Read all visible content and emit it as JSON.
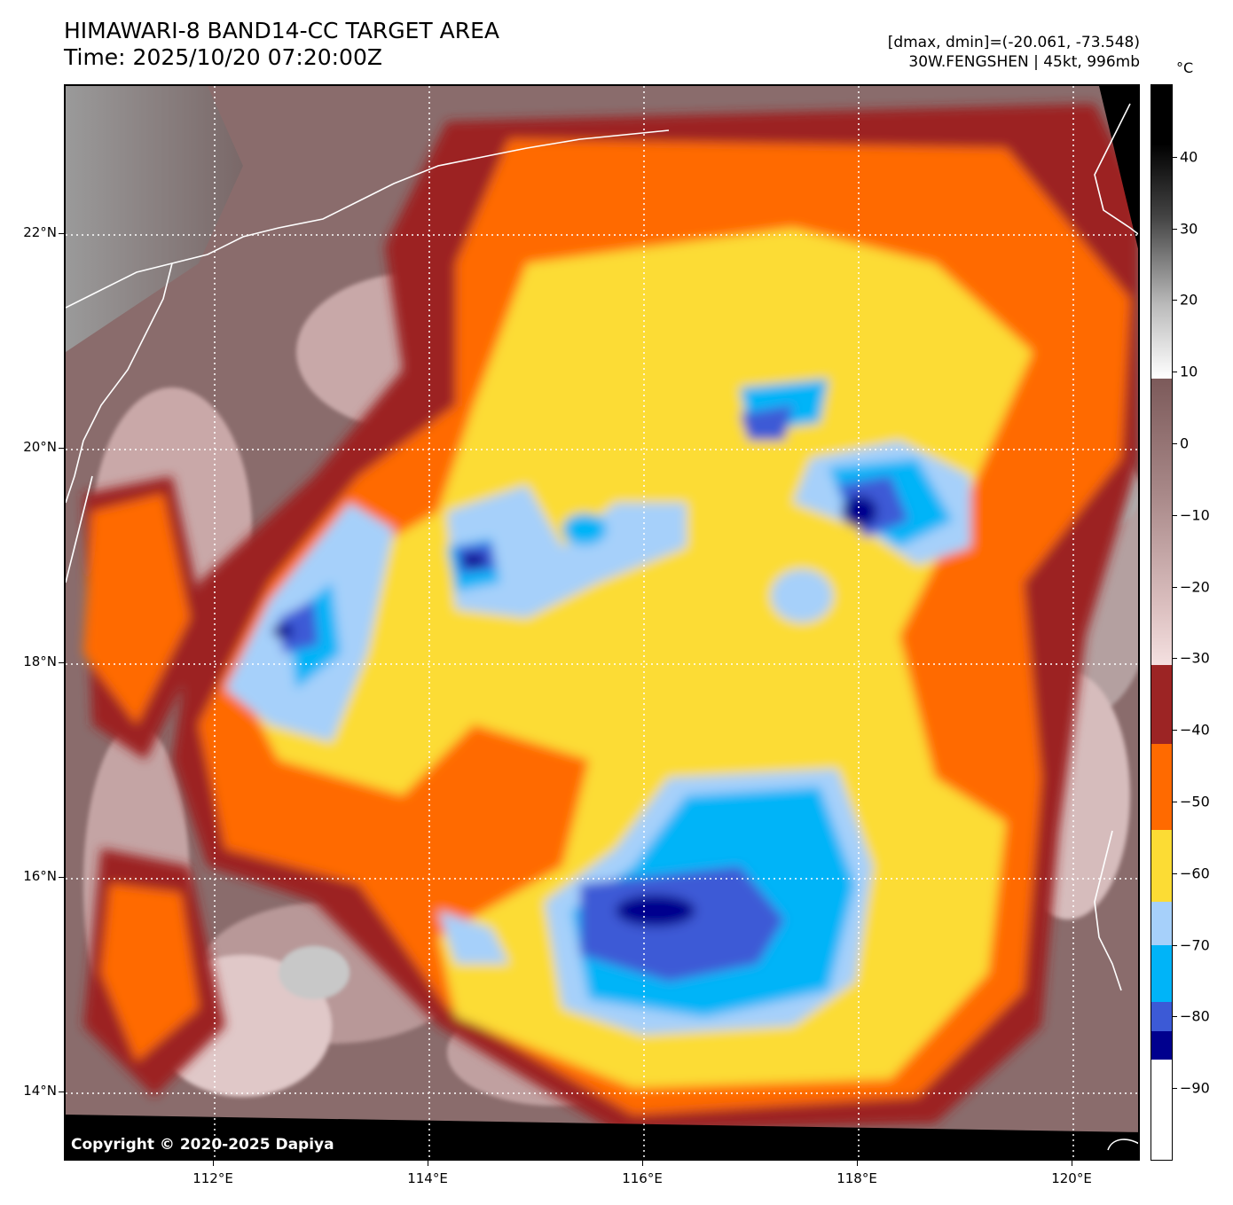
{
  "title": {
    "line1": "HIMAWARI-8 BAND14-CC TARGET AREA",
    "line2": "Time: 2025/10/20 07:20:00Z"
  },
  "info": {
    "line1": "[dmax, dmin]=(-20.061, -73.548)",
    "line2": "30W.FENGSHEN | 45kt, 996mb"
  },
  "copyright": "Copyright © 2020-2025 Dapiya",
  "map": {
    "lat_ticks": [
      "22°N",
      "20°N",
      "18°N",
      "16°N",
      "14°N"
    ],
    "lon_ticks": [
      "112°E",
      "114°E",
      "116°E",
      "118°E",
      "120°E"
    ],
    "lat_values": [
      22,
      20,
      18,
      16,
      14
    ],
    "lon_values": [
      112,
      114,
      116,
      118,
      120
    ],
    "lat_range": [
      13.3,
      23.4
    ],
    "lon_range": [
      110.6,
      120.6
    ],
    "gridlines": "dotted white"
  },
  "colorbar": {
    "unit": "°C",
    "tick_labels": [
      "40",
      "30",
      "20",
      "10",
      "0",
      "−10",
      "−20",
      "−30",
      "−40",
      "−50",
      "−60",
      "−70",
      "−80",
      "−90"
    ],
    "tick_values": [
      40,
      30,
      20,
      10,
      0,
      -10,
      -20,
      -30,
      -40,
      -50,
      -60,
      -70,
      -80,
      -90
    ],
    "range": [
      -100,
      50
    ],
    "segments": [
      {
        "from": 50,
        "to": 9,
        "style": "grayscale"
      },
      {
        "from": 9,
        "to": -31,
        "style": "brown-pink"
      },
      {
        "from": -31,
        "to": -42,
        "color": "#9c2424"
      },
      {
        "from": -42,
        "to": -54,
        "color": "#ff6a00"
      },
      {
        "from": -54,
        "to": -64,
        "color": "#fcdc34"
      },
      {
        "from": -64,
        "to": -70,
        "color": "#a6d0fa"
      },
      {
        "from": -70,
        "to": -78,
        "color": "#00b4f8"
      },
      {
        "from": -78,
        "to": -82,
        "color": "#3c5ad6"
      },
      {
        "from": -82,
        "to": -86,
        "color": "#00008e"
      },
      {
        "from": -86,
        "to": -100,
        "color": "#ffffff"
      }
    ]
  },
  "colors": {
    "ocean_background": "#7a6060",
    "very_cold": "#00008e",
    "deep_blue": "#3c5ad6",
    "cyan": "#00b4f8",
    "light_blue": "#a6d0fa",
    "yellow": "#fcdc34",
    "orange": "#ff6a00",
    "dark_red": "#9c2424",
    "pink": "#e8c8c8"
  }
}
